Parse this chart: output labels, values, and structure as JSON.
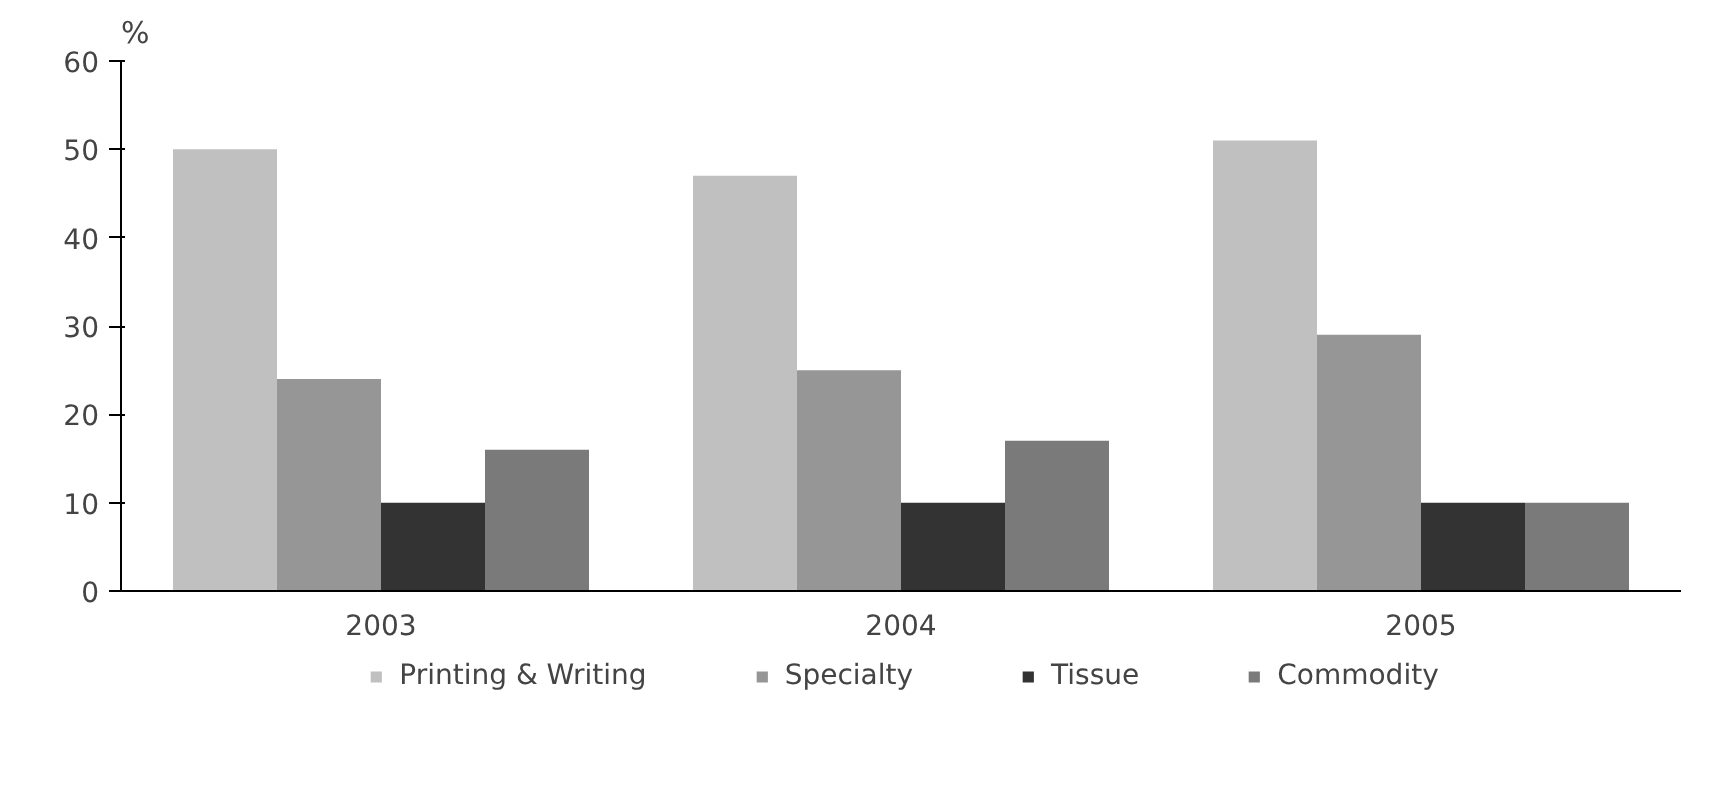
{
  "chart_data": {
    "type": "bar",
    "ylabel": "%",
    "categories": [
      "2003",
      "2004",
      "2005"
    ],
    "series": [
      {
        "name": "Printing & Writing",
        "color": "#c0c0c0",
        "values": [
          50,
          47,
          51
        ]
      },
      {
        "name": "Specialty",
        "color": "#969696",
        "values": [
          24,
          25,
          29
        ]
      },
      {
        "name": "Tissue",
        "color": "#333333",
        "values": [
          10,
          10,
          10
        ]
      },
      {
        "name": "Commodity",
        "color": "#7a7a7a",
        "values": [
          16,
          17,
          10
        ]
      }
    ],
    "ylim": [
      0,
      60
    ],
    "yticks": [
      0,
      10,
      20,
      30,
      40,
      50,
      60
    ],
    "grid": false,
    "legend": "bottom"
  }
}
